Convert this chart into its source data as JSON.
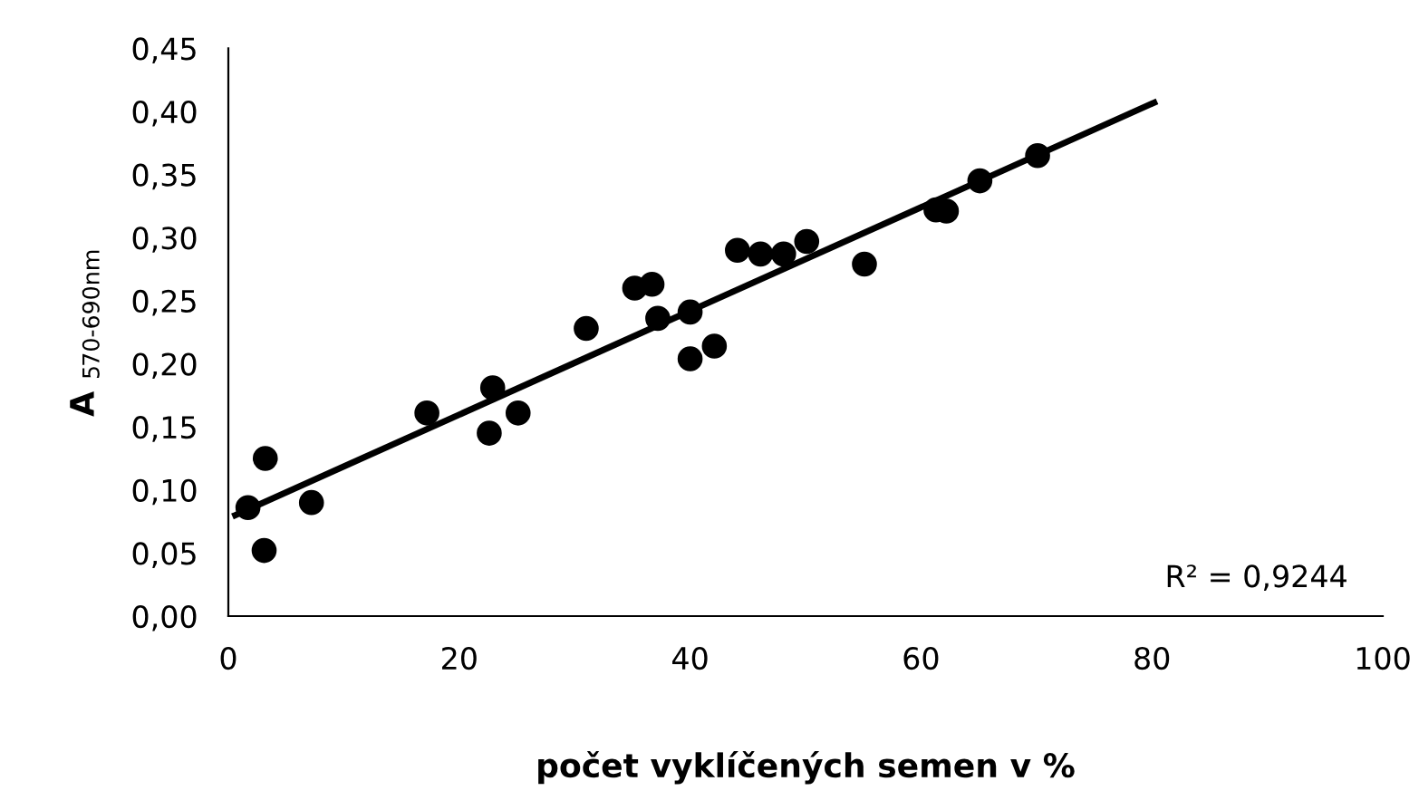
{
  "chart_data": {
    "type": "scatter",
    "xlabel": "počet vyklíčených semen v %",
    "ylabel": "A $_{570-690nm}$",
    "annotations": [
      "R² = 0,9244"
    ],
    "xlim": [
      0,
      100
    ],
    "xticks": [
      0,
      20,
      40,
      60,
      80,
      100
    ],
    "ylim": [
      0,
      0.45
    ],
    "yticks": [
      {
        "value": 0,
        "label": "0,00"
      },
      {
        "value": 0.05,
        "label": "0,05"
      },
      {
        "value": 0.1,
        "label": "0,10"
      },
      {
        "value": 0.15,
        "label": "0,15"
      },
      {
        "value": 0.2,
        "label": "0,20"
      },
      {
        "value": 0.25,
        "label": "0,25"
      },
      {
        "value": 0.3,
        "label": "0,30"
      },
      {
        "value": 0.35,
        "label": "0,35"
      },
      {
        "value": 0.4,
        "label": "0,40"
      },
      {
        "value": 0.45,
        "label": "0,45"
      }
    ],
    "grid": false,
    "legend": false,
    "series": [
      {
        "color": "#000000",
        "marker": "circle",
        "x": [
          1.7,
          3.2,
          3.1,
          7.2,
          17.2,
          22.6,
          22.9,
          25.1,
          31.0,
          35.2,
          36.7,
          37.2,
          40.0,
          40.0,
          42.1,
          44.1,
          46.1,
          48.1,
          50.1,
          55.1,
          61.3,
          62.2,
          65.1,
          70.1
        ],
        "values": [
          0.086,
          0.125,
          0.052,
          0.09,
          0.161,
          0.145,
          0.181,
          0.161,
          0.228,
          0.26,
          0.263,
          0.236,
          0.241,
          0.204,
          0.214,
          0.29,
          0.287,
          0.287,
          0.297,
          0.279,
          0.322,
          0.321,
          0.345,
          0.365
        ]
      },
      {
        "type": "line",
        "color": "#000000",
        "line_style": "solid",
        "marker": "none",
        "x": [
          0.6,
          80.2
        ],
        "values": [
          0.08,
          0.407
        ]
      }
    ]
  }
}
